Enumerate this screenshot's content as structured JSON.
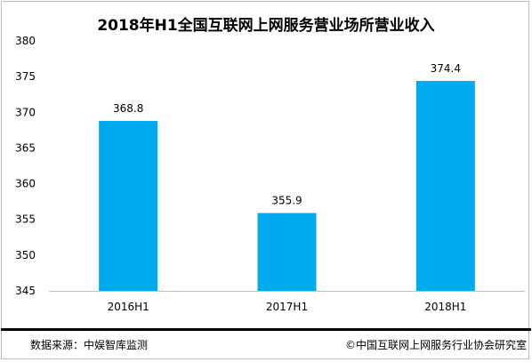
{
  "chart_data": {
    "type": "bar",
    "title": "2018年H1全国互联网上网服务营业场所营业收入",
    "categories": [
      "2016H1",
      "2017H1",
      "2018H1"
    ],
    "values": [
      368.8,
      355.9,
      374.4
    ],
    "value_labels": [
      "368.8",
      "355.9",
      "374.4"
    ],
    "ylim": [
      345,
      380
    ],
    "yticks": [
      345,
      350,
      355,
      360,
      365,
      370,
      375,
      380
    ],
    "xlabel": "",
    "ylabel": "",
    "grid": false,
    "legend": "none",
    "bar_color": "#00aaf0"
  },
  "footer": {
    "source": "数据来源：中娱智库监测",
    "copyright": "©中国互联网上网服务行业协会研究室"
  }
}
